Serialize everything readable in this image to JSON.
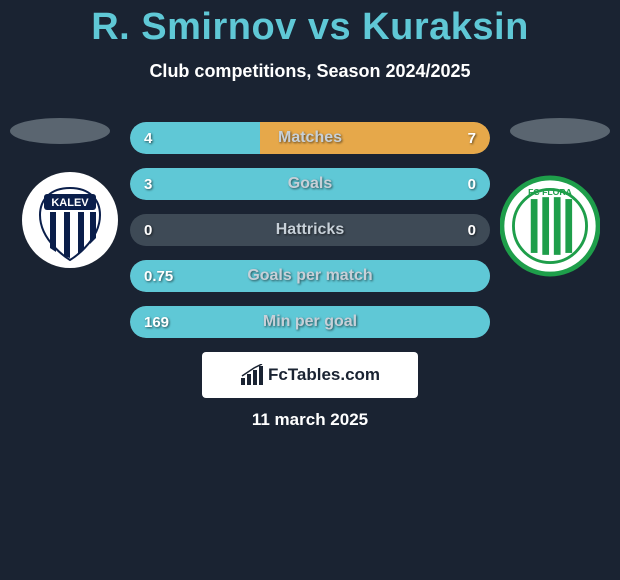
{
  "title": "R. Smirnov vs Kuraksin",
  "subtitle": "Club competitions, Season 2024/2025",
  "date": "11 march 2025",
  "brand": "FcTables.com",
  "colors": {
    "background": "#1a2332",
    "title": "#5fc8d6",
    "row_track": "#3e4a56",
    "bar_left": "#5fc8d6",
    "bar_right": "#e6a84a",
    "pedestal": "#5a6570"
  },
  "stats": [
    {
      "label": "Matches",
      "left_val": "4",
      "right_val": "7",
      "left_pct": 36,
      "right_pct": 64
    },
    {
      "label": "Goals",
      "left_val": "3",
      "right_val": "0",
      "left_pct": 100,
      "right_pct": 0
    },
    {
      "label": "Hattricks",
      "left_val": "0",
      "right_val": "0",
      "left_pct": 0,
      "right_pct": 0
    },
    {
      "label": "Goals per match",
      "left_val": "0.75",
      "right_val": "",
      "left_pct": 100,
      "right_pct": 0
    },
    {
      "label": "Min per goal",
      "left_val": "169",
      "right_val": "",
      "left_pct": 100,
      "right_pct": 0
    }
  ],
  "crest_left": {
    "name": "Kalev",
    "bg": "#ffffff",
    "stripe": "#0a1e4a",
    "text": "KALEV"
  },
  "crest_right": {
    "name": "FC Flora",
    "bg": "#ffffff",
    "ring": "#1e9e4a",
    "stripe": "#1e9e4a"
  }
}
